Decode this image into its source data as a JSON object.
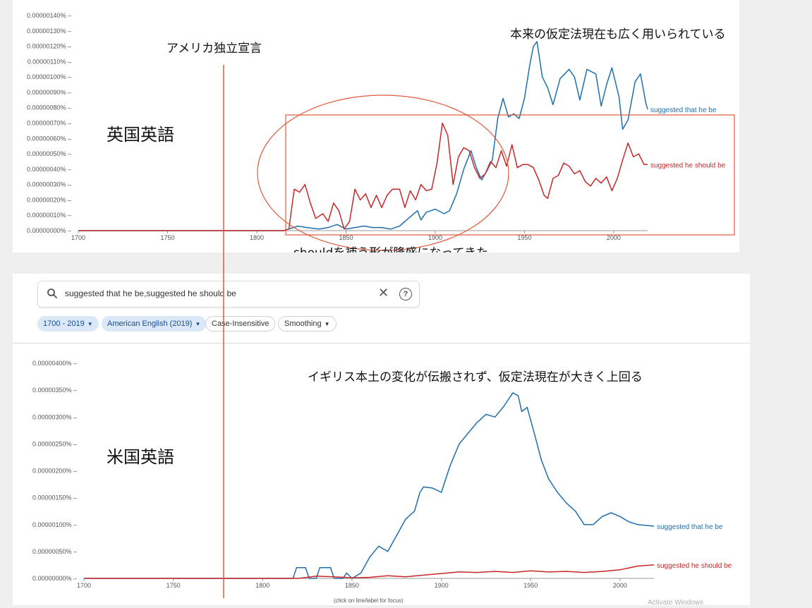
{
  "annotations": {
    "independence": "アメリカ独立宣言",
    "uk_label": "英国英語",
    "us_label": "米国英語",
    "uk_comment": "本来の仮定法現在も広く用いられている",
    "should_comment": "shouldを補う形が隆盛になってきた",
    "us_comment": "イギリス本土の変化が伝搬されず、仮定法現在が大きく上回る"
  },
  "search": {
    "query": "suggested that he be,suggested he should be",
    "icon": "search-icon",
    "clear_icon": "close-icon",
    "help_icon": "help-icon"
  },
  "filters": {
    "years": "1700 - 2019",
    "corpus": "American English (2019)",
    "case": "Case-Insensitive",
    "smoothing": "Smoothing"
  },
  "footer": {
    "focus_hint": "(click on line/label for focus)",
    "watermark": "Activate Windows"
  },
  "colors": {
    "blue": "#1f6fae",
    "red": "#c62828",
    "annotation": "#e05a3a"
  },
  "chart_data": [
    {
      "type": "line",
      "corpus": "British English",
      "xlim": [
        1700,
        2019
      ],
      "ylim": [
        0,
        1.4e-06
      ],
      "x_ticks": [
        1700,
        1750,
        1800,
        1850,
        1900,
        1950,
        2000
      ],
      "x_tick_labels": [
        "1700",
        "1750",
        "1800",
        "1850",
        "1900",
        "1950",
        "2000"
      ],
      "y_ticks": [
        0,
        1e-07,
        2e-07,
        3e-07,
        4e-07,
        5e-07,
        6e-07,
        7e-07,
        8e-07,
        9e-07,
        1e-06,
        1.1e-06,
        1.2e-06,
        1.3e-06,
        1.4e-06
      ],
      "y_tick_labels": [
        "0.00000000%",
        "0.00000010%",
        "0.00000020%",
        "0.00000030%",
        "0.00000040%",
        "0.00000050%",
        "0.00000060%",
        "0.00000070%",
        "0.00000080%",
        "0.00000090%",
        "0.00000100%",
        "0.00000110%",
        "0.00000120%",
        "0.00000130%",
        "0.00000140%"
      ],
      "series": [
        {
          "name": "suggested that he be",
          "color": "#1f6fae",
          "points": [
            [
              1700,
              0
            ],
            [
              1815,
              0
            ],
            [
              1818,
              1e-08
            ],
            [
              1823,
              3e-08
            ],
            [
              1828,
              2e-08
            ],
            [
              1835,
              1e-08
            ],
            [
              1840,
              2e-08
            ],
            [
              1845,
              4e-08
            ],
            [
              1850,
              1e-08
            ],
            [
              1855,
              2e-08
            ],
            [
              1860,
              3e-08
            ],
            [
              1865,
              2e-08
            ],
            [
              1870,
              2e-08
            ],
            [
              1875,
              1e-08
            ],
            [
              1880,
              3e-08
            ],
            [
              1885,
              8e-08
            ],
            [
              1890,
              1.3e-07
            ],
            [
              1892,
              7e-08
            ],
            [
              1895,
              1.2e-07
            ],
            [
              1900,
              1.4e-07
            ],
            [
              1905,
              1.1e-07
            ],
            [
              1908,
              1.3e-07
            ],
            [
              1912,
              2.4e-07
            ],
            [
              1916,
              4e-07
            ],
            [
              1920,
              5.2e-07
            ],
            [
              1923,
              4.1e-07
            ],
            [
              1926,
              3.3e-07
            ],
            [
              1929,
              3.9e-07
            ],
            [
              1932,
              4.6e-07
            ],
            [
              1935,
              7.3e-07
            ],
            [
              1938,
              8.6e-07
            ],
            [
              1941,
              7.4e-07
            ],
            [
              1944,
              7.6e-07
            ],
            [
              1947,
              7.3e-07
            ],
            [
              1950,
              8.6e-07
            ],
            [
              1953,
              1.08e-06
            ],
            [
              1955,
              1.2e-06
            ],
            [
              1957,
              1.23e-06
            ],
            [
              1960,
              1e-06
            ],
            [
              1963,
              9.3e-07
            ],
            [
              1966,
              8.2e-07
            ],
            [
              1970,
              9.9e-07
            ],
            [
              1975,
              1.05e-06
            ],
            [
              1978,
              1e-06
            ],
            [
              1981,
              8.5e-07
            ],
            [
              1985,
              1.05e-06
            ],
            [
              1990,
              1.02e-06
            ],
            [
              1993,
              8.1e-07
            ],
            [
              1996,
              9.5e-07
            ],
            [
              1999,
              1.06e-06
            ],
            [
              2003,
              8.7e-07
            ],
            [
              2005,
              6.6e-07
            ],
            [
              2008,
              7.2e-07
            ],
            [
              2012,
              9.7e-07
            ],
            [
              2015,
              1.02e-06
            ],
            [
              2018,
              8.3e-07
            ],
            [
              2019,
              7.9e-07
            ]
          ]
        },
        {
          "name": "suggested he should be",
          "color": "#c62828",
          "points": [
            [
              1700,
              0
            ],
            [
              1815,
              0
            ],
            [
              1818,
              1e-08
            ],
            [
              1821,
              2.7e-07
            ],
            [
              1824,
              2.5e-07
            ],
            [
              1827,
              3e-07
            ],
            [
              1830,
              1.8e-07
            ],
            [
              1833,
              8e-08
            ],
            [
              1837,
              1.1e-07
            ],
            [
              1840,
              6e-08
            ],
            [
              1843,
              1.8e-07
            ],
            [
              1846,
              1.3e-07
            ],
            [
              1849,
              1e-08
            ],
            [
              1852,
              6e-08
            ],
            [
              1855,
              2.7e-07
            ],
            [
              1858,
              2e-07
            ],
            [
              1861,
              2.4e-07
            ],
            [
              1864,
              1.5e-07
            ],
            [
              1867,
              2.3e-07
            ],
            [
              1870,
              1.5e-07
            ],
            [
              1873,
              2.3e-07
            ],
            [
              1876,
              2.7e-07
            ],
            [
              1880,
              2.7e-07
            ],
            [
              1883,
              1.5e-07
            ],
            [
              1886,
              2.6e-07
            ],
            [
              1889,
              2e-07
            ],
            [
              1892,
              3e-07
            ],
            [
              1895,
              2.6e-07
            ],
            [
              1898,
              2.7e-07
            ],
            [
              1901,
              4.4e-07
            ],
            [
              1904,
              7e-07
            ],
            [
              1907,
              6.2e-07
            ],
            [
              1910,
              3e-07
            ],
            [
              1913,
              4.8e-07
            ],
            [
              1916,
              5.4e-07
            ],
            [
              1919,
              5.2e-07
            ],
            [
              1922,
              4.1e-07
            ],
            [
              1925,
              3.4e-07
            ],
            [
              1928,
              3.7e-07
            ],
            [
              1931,
              4.5e-07
            ],
            [
              1934,
              4.1e-07
            ],
            [
              1937,
              5.2e-07
            ],
            [
              1940,
              4.2e-07
            ],
            [
              1943,
              5.6e-07
            ],
            [
              1946,
              4.1e-07
            ],
            [
              1949,
              4.3e-07
            ],
            [
              1952,
              4.3e-07
            ],
            [
              1955,
              4.1e-07
            ],
            [
              1958,
              3.3e-07
            ],
            [
              1961,
              2.3e-07
            ],
            [
              1963,
              2.1e-07
            ],
            [
              1966,
              3.4e-07
            ],
            [
              1969,
              3.6e-07
            ],
            [
              1972,
              4.4e-07
            ],
            [
              1975,
              4.2e-07
            ],
            [
              1978,
              3.7e-07
            ],
            [
              1981,
              3.9e-07
            ],
            [
              1984,
              3.2e-07
            ],
            [
              1987,
              2.9e-07
            ],
            [
              1990,
              3.4e-07
            ],
            [
              1993,
              3.1e-07
            ],
            [
              1996,
              3.5e-07
            ],
            [
              1999,
              2.6e-07
            ],
            [
              2002,
              3.4e-07
            ],
            [
              2005,
              4.6e-07
            ],
            [
              2008,
              5.7e-07
            ],
            [
              2011,
              4.8e-07
            ],
            [
              2014,
              5e-07
            ],
            [
              2017,
              4.3e-07
            ],
            [
              2019,
              4.3e-07
            ]
          ]
        }
      ]
    },
    {
      "type": "line",
      "corpus": "American English (2019)",
      "xlim": [
        1700,
        2019
      ],
      "ylim": [
        0,
        4e-06
      ],
      "x_ticks": [
        1700,
        1750,
        1800,
        1850,
        1900,
        1950,
        2000
      ],
      "x_tick_labels": [
        "1700",
        "1750",
        "1800",
        "1850",
        "1900",
        "1950",
        "2000"
      ],
      "y_ticks": [
        0,
        5e-07,
        1e-06,
        1.5e-06,
        2e-06,
        2.5e-06,
        3e-06,
        3.5e-06,
        4e-06
      ],
      "y_tick_labels": [
        "0.00000000%",
        "0.00000050%",
        "0.00000100%",
        "0.00000150%",
        "0.00000200%",
        "0.00000250%",
        "0.00000300%",
        "0.00000350%",
        "0.00000400%"
      ],
      "series": [
        {
          "name": "suggested that he be",
          "color": "#1f6fae",
          "points": [
            [
              1700,
              0
            ],
            [
              1817,
              0
            ],
            [
              1819,
              2e-07
            ],
            [
              1824,
              2e-07
            ],
            [
              1826,
              0
            ],
            [
              1830,
              0
            ],
            [
              1832,
              2e-07
            ],
            [
              1838,
              2e-07
            ],
            [
              1840,
              0
            ],
            [
              1845,
              0
            ],
            [
              1847,
              1e-07
            ],
            [
              1850,
              0
            ],
            [
              1855,
              1e-07
            ],
            [
              1860,
              4e-07
            ],
            [
              1865,
              6e-07
            ],
            [
              1870,
              5e-07
            ],
            [
              1875,
              8e-07
            ],
            [
              1880,
              1.1e-06
            ],
            [
              1885,
              1.25e-06
            ],
            [
              1888,
              1.6e-06
            ],
            [
              1890,
              1.7e-06
            ],
            [
              1895,
              1.68e-06
            ],
            [
              1900,
              1.6e-06
            ],
            [
              1905,
              2.1e-06
            ],
            [
              1910,
              2.5e-06
            ],
            [
              1915,
              2.7e-06
            ],
            [
              1920,
              2.9e-06
            ],
            [
              1925,
              3.05e-06
            ],
            [
              1930,
              3e-06
            ],
            [
              1935,
              3.2e-06
            ],
            [
              1940,
              3.45e-06
            ],
            [
              1943,
              3.4e-06
            ],
            [
              1945,
              3.1e-06
            ],
            [
              1948,
              3.18e-06
            ],
            [
              1952,
              2.7e-06
            ],
            [
              1956,
              2.2e-06
            ],
            [
              1960,
              1.85e-06
            ],
            [
              1965,
              1.6e-06
            ],
            [
              1970,
              1.4e-06
            ],
            [
              1975,
              1.25e-06
            ],
            [
              1980,
              1e-06
            ],
            [
              1985,
              1e-06
            ],
            [
              1990,
              1.15e-06
            ],
            [
              1995,
              1.22e-06
            ],
            [
              2000,
              1.15e-06
            ],
            [
              2005,
              1.05e-06
            ],
            [
              2010,
              1e-06
            ],
            [
              2019,
              9.7e-07
            ]
          ]
        },
        {
          "name": "suggested he should be",
          "color": "#c62828",
          "points": [
            [
              1700,
              0
            ],
            [
              1820,
              0
            ],
            [
              1825,
              2e-08
            ],
            [
              1830,
              4e-08
            ],
            [
              1840,
              3e-08
            ],
            [
              1850,
              1e-08
            ],
            [
              1860,
              2e-08
            ],
            [
              1870,
              5e-08
            ],
            [
              1880,
              3e-08
            ],
            [
              1890,
              6e-08
            ],
            [
              1900,
              9e-08
            ],
            [
              1910,
              1.2e-07
            ],
            [
              1920,
              1.1e-07
            ],
            [
              1930,
              1.3e-07
            ],
            [
              1940,
              1.1e-07
            ],
            [
              1950,
              1.4e-07
            ],
            [
              1960,
              1.2e-07
            ],
            [
              1970,
              1.3e-07
            ],
            [
              1980,
              1.1e-07
            ],
            [
              1990,
              1.3e-07
            ],
            [
              2000,
              1.6e-07
            ],
            [
              2010,
              2.3e-07
            ],
            [
              2019,
              2.5e-07
            ]
          ]
        }
      ]
    }
  ]
}
